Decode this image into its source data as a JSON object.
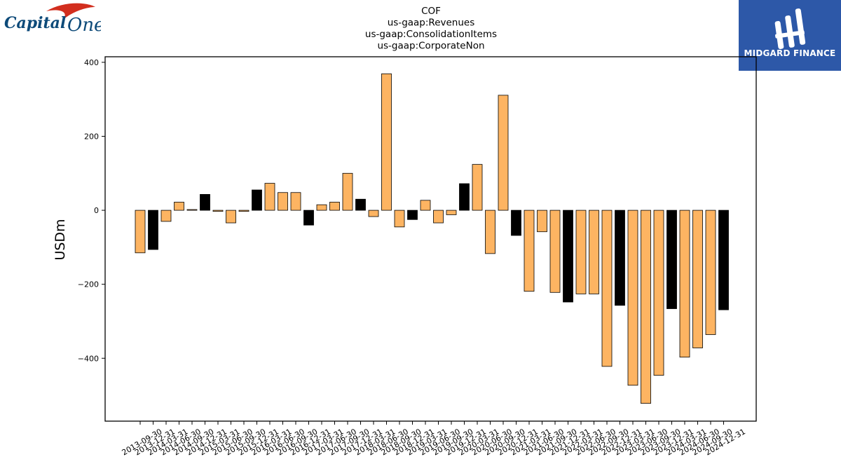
{
  "logos": {
    "left": {
      "brand": "Capital One",
      "word1": "Capital",
      "word2": "One",
      "accent": "#d22e1e",
      "color": "#0d4a79"
    },
    "right": {
      "text": "MIDGARD FINANCE",
      "bg": "#2d58a8"
    }
  },
  "chart_data": {
    "type": "bar",
    "title_lines": [
      "COF",
      "us-gaap:Revenues",
      "us-gaap:ConsolidationItems",
      "us-gaap:CorporateNon"
    ],
    "ylabel": "USDm",
    "xlabel": "",
    "ylim": [
      -570,
      415
    ],
    "yticks": [
      -400,
      -200,
      0,
      200,
      400
    ],
    "grid": false,
    "legend": "none",
    "colors": {
      "year_end": "#000000",
      "other": "#fdb462",
      "edge": "#000000"
    },
    "categories": [
      "2013-09-30",
      "2013-12-31",
      "2014-03-31",
      "2014-06-30",
      "2014-09-30",
      "2014-12-31",
      "2015-03-31",
      "2015-06-30",
      "2015-09-30",
      "2015-12-31",
      "2016-03-31",
      "2016-06-30",
      "2016-09-30",
      "2016-12-31",
      "2017-03-31",
      "2017-06-30",
      "2017-09-30",
      "2017-12-31",
      "2018-03-31",
      "2018-06-30",
      "2018-09-30",
      "2018-12-31",
      "2019-03-31",
      "2019-06-30",
      "2019-09-30",
      "2019-12-31",
      "2020-03-31",
      "2020-06-30",
      "2020-09-30",
      "2020-12-31",
      "2021-03-31",
      "2021-06-30",
      "2021-09-30",
      "2021-12-31",
      "2022-03-31",
      "2022-06-30",
      "2022-09-30",
      "2022-12-31",
      "2023-03-31",
      "2023-06-30",
      "2023-09-30",
      "2023-12-31",
      "2024-03-31",
      "2024-06-30",
      "2024-09-30",
      "2024-12-31"
    ],
    "values": [
      -115,
      -106,
      -30,
      22,
      2,
      43,
      -3,
      -34,
      -3,
      55,
      73,
      48,
      48,
      -40,
      15,
      22,
      100,
      30,
      -17,
      369,
      -45,
      -25,
      27,
      -34,
      -12,
      72,
      124,
      -117,
      311,
      -68,
      -219,
      -58,
      -222,
      -248,
      -226,
      -226,
      -422,
      -257,
      -473,
      -522,
      -446,
      -266,
      -397,
      -372,
      -336,
      -269
    ]
  }
}
